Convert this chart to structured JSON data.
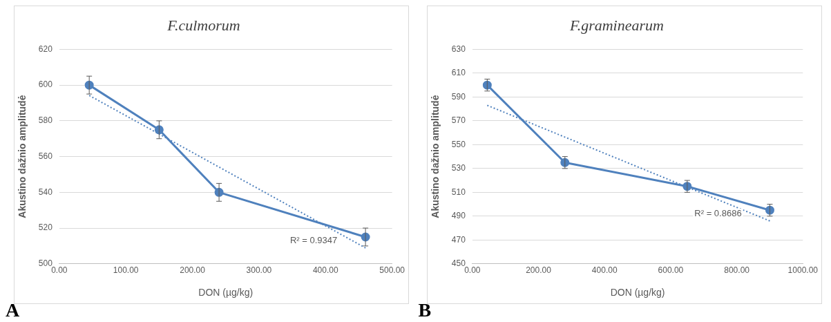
{
  "chart_data": [
    {
      "type": "line",
      "title": "F.culmorum",
      "xlabel": "DON (µg/kg)",
      "ylabel": "Akustino dažnio amplitudė",
      "xlim": [
        0,
        500
      ],
      "xticks": [
        {
          "value": 0,
          "label": "0.00"
        },
        {
          "value": 100,
          "label": "100.00"
        },
        {
          "value": 200,
          "label": "200.00"
        },
        {
          "value": 300,
          "label": "300.00"
        },
        {
          "value": 400,
          "label": "400.00"
        },
        {
          "value": 500,
          "label": "500.00"
        }
      ],
      "ylim": [
        500,
        620
      ],
      "yticks": [
        500,
        520,
        540,
        560,
        580,
        600,
        620
      ],
      "grid": "y",
      "legend": false,
      "x": [
        45,
        150,
        240,
        460
      ],
      "series": [
        {
          "color": "#4f81bd",
          "values": [
            600,
            575,
            540,
            515
          ],
          "errors": [
            5,
            5,
            5,
            5
          ],
          "marker": "circle",
          "line_style": "solid"
        },
        {
          "type": "line",
          "color": "#4f81bd",
          "x": [
            45,
            460
          ],
          "values": [
            594.2,
            508.9
          ],
          "marker": "none",
          "line_style": "dotted"
        }
      ],
      "annotations": [
        "R² = 0.9347",
        "A"
      ]
    },
    {
      "type": "line",
      "title": "F.graminearum",
      "xlabel": "DON (µg/kg)",
      "ylabel": "Akustino dažnio amplitudė",
      "xlim": [
        0,
        1000
      ],
      "xticks": [
        {
          "value": 0,
          "label": "0.00"
        },
        {
          "value": 200,
          "label": "200.00"
        },
        {
          "value": 400,
          "label": "400.00"
        },
        {
          "value": 600,
          "label": "600.00"
        },
        {
          "value": 800,
          "label": "800.00"
        },
        {
          "value": 1000,
          "label": "1000.00"
        }
      ],
      "ylim": [
        450,
        630
      ],
      "yticks": [
        450,
        470,
        490,
        510,
        530,
        550,
        570,
        590,
        610,
        630
      ],
      "grid": "y",
      "legend": false,
      "x": [
        45,
        280,
        650,
        900
      ],
      "series": [
        {
          "color": "#4f81bd",
          "values": [
            600,
            535,
            515,
            495
          ],
          "errors": [
            5,
            5,
            5,
            5
          ],
          "marker": "circle",
          "line_style": "solid"
        },
        {
          "type": "line",
          "color": "#4f81bd",
          "x": [
            45,
            900
          ],
          "values": [
            583,
            486
          ],
          "marker": "none",
          "line_style": "dotted"
        }
      ],
      "annotations": [
        "R² = 0.8686",
        "B"
      ]
    }
  ]
}
